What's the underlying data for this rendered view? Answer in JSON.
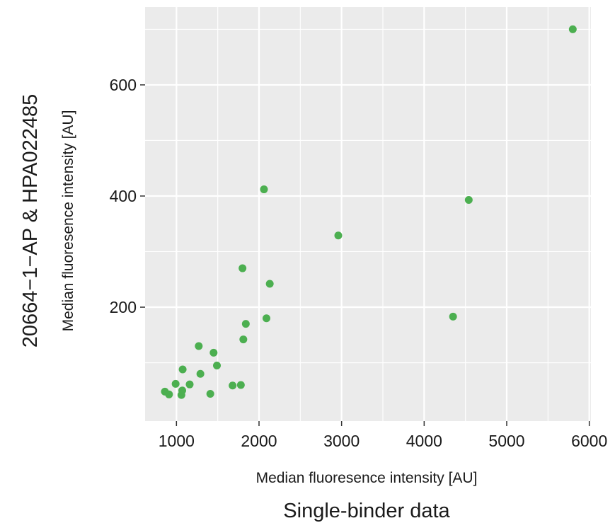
{
  "chart_data": {
    "type": "scatter",
    "title": "",
    "outer_xlabel": "Single-binder data",
    "outer_ylabel": "20664−1−AP & HPA022485",
    "xlabel": "Median fluoresence intensity [AU]",
    "ylabel": "Median fluoresence intensity [AU]",
    "xlim": [
      620,
      6020
    ],
    "ylim": [
      -5,
      740
    ],
    "xticks": [
      1000,
      2000,
      3000,
      4000,
      5000,
      6000
    ],
    "xtick_labels": [
      "1000",
      "2000",
      "3000",
      "4000",
      "5000",
      "6000"
    ],
    "yticks": [
      200,
      400,
      600
    ],
    "ytick_labels": [
      "200",
      "400",
      "600"
    ],
    "grid": true,
    "point_color": "#4caf50",
    "panel_color": "#ebebeb",
    "grid_color": "#ffffff",
    "points": [
      {
        "x": 860,
        "y": 48
      },
      {
        "x": 910,
        "y": 43
      },
      {
        "x": 990,
        "y": 62
      },
      {
        "x": 1060,
        "y": 42
      },
      {
        "x": 1070,
        "y": 50
      },
      {
        "x": 1075,
        "y": 88
      },
      {
        "x": 1160,
        "y": 61
      },
      {
        "x": 1270,
        "y": 130
      },
      {
        "x": 1290,
        "y": 80
      },
      {
        "x": 1410,
        "y": 44
      },
      {
        "x": 1450,
        "y": 118
      },
      {
        "x": 1490,
        "y": 95
      },
      {
        "x": 1680,
        "y": 59
      },
      {
        "x": 1780,
        "y": 60
      },
      {
        "x": 1800,
        "y": 270
      },
      {
        "x": 1810,
        "y": 142
      },
      {
        "x": 1840,
        "y": 170
      },
      {
        "x": 2060,
        "y": 412
      },
      {
        "x": 2090,
        "y": 180
      },
      {
        "x": 2130,
        "y": 242
      },
      {
        "x": 2960,
        "y": 329
      },
      {
        "x": 4350,
        "y": 183
      },
      {
        "x": 4540,
        "y": 393
      },
      {
        "x": 5800,
        "y": 700
      }
    ]
  }
}
